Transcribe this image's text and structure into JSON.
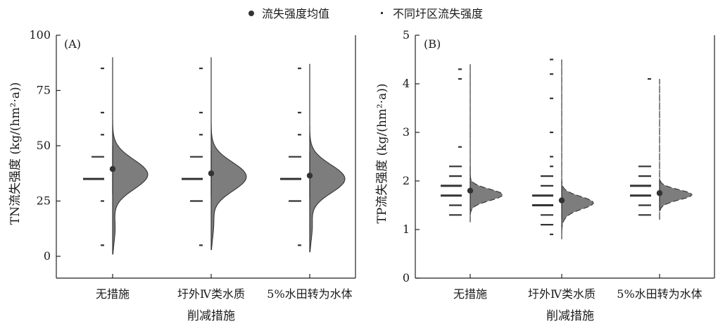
{
  "legend": {
    "mean_label": "流失强度均值",
    "point_label": "不同圩区流失强度"
  },
  "colors": {
    "violin_fill": "#7d7d7d",
    "stroke": "#333333",
    "mean_marker": "#333333"
  },
  "chart_data": [
    {
      "id": "A",
      "type": "half-violin",
      "panel_label": "(A)",
      "xlabel": "削减措施",
      "ylabel": "TN流失强度 (kg/(hm²·a))",
      "ylim": [
        0,
        100
      ],
      "yticks": [
        0,
        25,
        50,
        75,
        100
      ],
      "categories": [
        "无措施",
        "圩外Ⅳ类水质",
        "5%水田转为水体"
      ],
      "violin_range": [
        [
          1,
          90
        ],
        [
          3,
          90
        ],
        [
          2,
          87
        ]
      ],
      "means": [
        39.5,
        37.5,
        36.5
      ],
      "mean_error": [
        [
          28,
          50
        ],
        [
          27,
          48
        ],
        [
          26,
          47
        ]
      ],
      "points": [
        [
          85,
          65,
          55,
          45,
          35,
          25,
          5
        ],
        [
          85,
          65,
          55,
          45,
          35,
          25,
          5
        ],
        [
          85,
          65,
          55,
          45,
          35,
          25,
          5
        ]
      ],
      "violin_dashed": false
    },
    {
      "id": "B",
      "type": "half-violin",
      "panel_label": "(B)",
      "xlabel": "削减措施",
      "ylabel": "TP流失强度 (kg/(hm²·a))",
      "ylim": [
        0,
        5
      ],
      "yticks": [
        0,
        1,
        2,
        3,
        4,
        5
      ],
      "categories": [
        "无措施",
        "圩外Ⅳ类水质",
        "5%水田转为水体"
      ],
      "violin_range": [
        [
          1.15,
          4.4
        ],
        [
          0.8,
          4.5
        ],
        [
          1.2,
          4.1
        ]
      ],
      "means": [
        1.8,
        1.6,
        1.75
      ],
      "mean_error": [
        [
          1.4,
          2.3
        ],
        [
          1.2,
          2.0
        ],
        [
          1.45,
          2.05
        ]
      ],
      "points": [
        [
          4.3,
          4.1,
          2.7,
          2.3,
          2.1,
          1.9,
          1.7,
          1.5,
          1.3
        ],
        [
          4.5,
          4.2,
          3.7,
          3.0,
          2.5,
          2.3,
          2.1,
          1.9,
          1.7,
          1.5,
          1.3,
          1.1,
          0.9
        ],
        [
          4.1,
          2.3,
          2.1,
          1.9,
          1.7,
          1.5,
          1.3
        ]
      ],
      "violin_dashed": true
    }
  ]
}
